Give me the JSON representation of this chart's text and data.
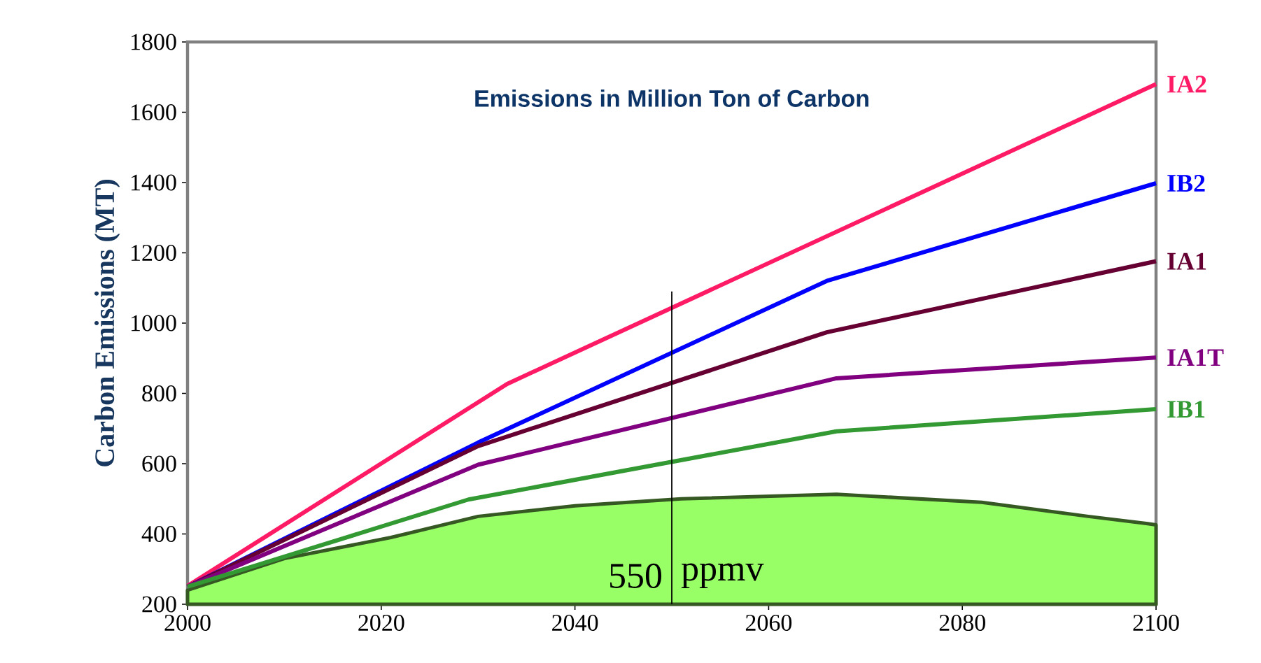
{
  "chart_data": {
    "type": "line",
    "title": "Emissions in Million Ton of Carbon",
    "ylabel": "Carbon Emissions (MT)",
    "xlim": [
      2000,
      2100
    ],
    "xticks": [
      2000,
      2020,
      2040,
      2060,
      2080,
      2100
    ],
    "ylim": [
      200,
      1800
    ],
    "yticks": [
      200,
      400,
      600,
      800,
      1000,
      1200,
      1400,
      1600,
      1800
    ],
    "grid": false,
    "marker": "none",
    "line_style": "solid",
    "series": [
      {
        "type": "area",
        "color": "#99ff66",
        "x": [
          2000,
          2010,
          2021,
          2030,
          2040,
          2051,
          2067,
          2082,
          2093,
          2099,
          2100
        ],
        "values": [
          240,
          330,
          390,
          450,
          480,
          500,
          513,
          490,
          450,
          430,
          426
        ]
      },
      {
        "name": "IA2",
        "color": "#ff1a66",
        "x": [
          2000,
          2033,
          2100
        ],
        "values": [
          252,
          827,
          1680
        ]
      },
      {
        "name": "IB2",
        "color": "#0000ff",
        "x": [
          2000,
          2030,
          2066,
          2100
        ],
        "values": [
          250,
          660,
          1120,
          1398
        ]
      },
      {
        "name": "IA1",
        "color": "#660033",
        "x": [
          2000,
          2030,
          2066,
          2100
        ],
        "values": [
          250,
          650,
          974,
          1176
        ]
      },
      {
        "name": "IA1T",
        "color": "#800080",
        "x": [
          2000,
          2030,
          2067,
          2100
        ],
        "values": [
          250,
          597,
          843,
          902
        ]
      },
      {
        "name": "IB1",
        "color": "#339933",
        "x": [
          2000,
          2029,
          2067,
          2100
        ],
        "values": [
          250,
          498,
          692,
          755
        ]
      },
      {
        "color": "#000000",
        "x": [
          2050,
          2050
        ],
        "values": [
          200,
          1090
        ]
      }
    ],
    "annotations": [
      "550",
      "ppmv"
    ]
  }
}
